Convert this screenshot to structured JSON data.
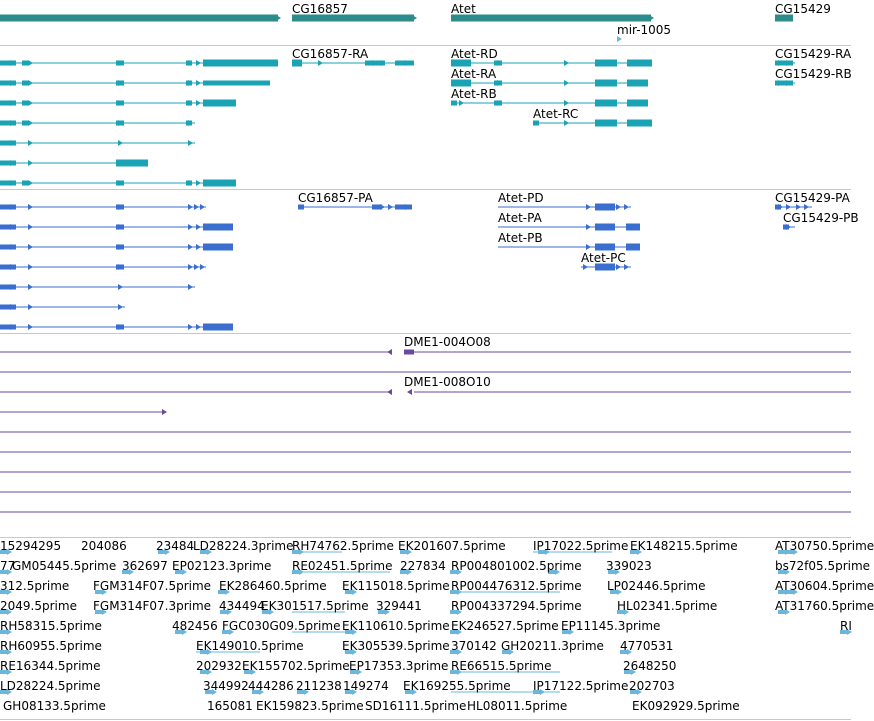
{
  "colors": {
    "gene": "#2e8b8b",
    "transcript": "#1aa3b5",
    "protein": "#3a6fcf",
    "probe": "#6a4a9e",
    "est": "#6bb7dc",
    "separator": "#c8c8c8"
  },
  "tracks": {
    "genes": {
      "labels": [
        "CG16857",
        "Atet",
        "mir-1005",
        "CG15429"
      ]
    },
    "transcripts": {
      "labels": [
        "CG16857-RA",
        "Atet-RD",
        "Atet-RA",
        "Atet-RB",
        "Atet-RC",
        "CG15429-RA",
        "CG15429-RB"
      ]
    },
    "proteins": {
      "labels": [
        "CG16857-PA",
        "Atet-PD",
        "Atet-PA",
        "Atet-PB",
        "Atet-PC",
        "CG15429-PA",
        "CG15429-PB"
      ]
    },
    "probes": {
      "labels": [
        "DME1-004O08",
        "DME1-008O10"
      ]
    },
    "ests": {
      "rows": [
        [
          "15294295",
          "204086",
          "23484",
          "LD28224.3prime",
          "RH74762.5prime",
          "EK201607.5prime",
          "IP17022.5prime",
          "EK148215.5prime",
          "AT30750.5prime"
        ],
        [
          "77",
          "GM05445.5prime",
          "362697",
          "EP02123.3prime",
          "RE02451.5prime",
          "227834",
          "RP004801002.5prime",
          "339023",
          "bs72f05.5prime"
        ],
        [
          "312.5prime",
          "FGM314F07.5prime",
          "EK286460.5prime",
          "EK115018.5prime",
          "RP004476312.5prime",
          "LP02446.5prime",
          "AT30604.5prime"
        ],
        [
          "2049.5prime",
          "FGM314F07.3prime",
          "434494",
          "EK301517.5prime",
          "329441",
          "RP004337294.5prime",
          "HL02341.5prime",
          "AT31760.5prime"
        ],
        [
          "RH58315.5prime",
          "482456",
          "FGC030G09.5prime",
          "EK110610.5prime",
          "EK246527.5prime",
          "EP11145.3prime",
          "RI"
        ],
        [
          "RH60955.5prime",
          "EK149010.5prime",
          "EK305539.5prime",
          "370142",
          "GH20211.3prime",
          "4770531"
        ],
        [
          "RE16344.5prime",
          "202932",
          "EK155702.5prime",
          "EP17353.3prime",
          "RE66515.5prime",
          "2648250"
        ],
        [
          "LD28224.5prime",
          "344992",
          "444286",
          "211238",
          "149274",
          "EK169255.5prime",
          "IP17122.5prime",
          "202703"
        ],
        [
          "GH08133.5prime",
          "165081",
          "EK159823.5prime",
          "SD16111.5prime",
          "HL08011.5prime",
          "EK092929.5prime"
        ]
      ]
    }
  }
}
